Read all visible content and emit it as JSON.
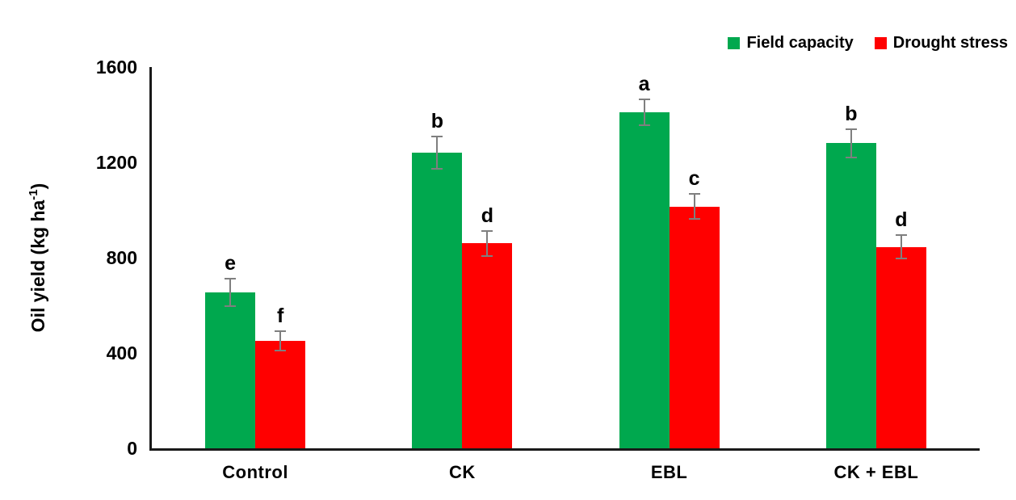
{
  "chart_data": {
    "type": "bar",
    "title": "",
    "xlabel": "",
    "ylabel": "Oil yield (kg ha⁻¹)",
    "ylabel_parts": {
      "main": "Oil yield (kg ha",
      "sup": "-1",
      "close": ")"
    },
    "categories": [
      "Control",
      "CK",
      "EBL",
      "CK + EBL"
    ],
    "series": [
      {
        "name": "Field capacity",
        "color": "#00A84E",
        "values": [
          655,
          1240,
          1410,
          1280
        ],
        "errors": [
          55,
          65,
          50,
          57
        ],
        "sig_letters": [
          "e",
          "b",
          "a",
          "b"
        ]
      },
      {
        "name": "Drought stress",
        "color": "#FF0000",
        "values": [
          450,
          860,
          1015,
          845
        ],
        "errors": [
          38,
          50,
          50,
          45
        ],
        "sig_letters": [
          "f",
          "d",
          "c",
          "d"
        ]
      }
    ],
    "ylim": [
      0,
      1600
    ],
    "yticks": [
      0,
      400,
      800,
      1200,
      1600
    ],
    "grid": false,
    "legend_position": "top-right",
    "error_bar_color": "#7F7F7F",
    "axis_color": "#1A1A1A",
    "text_color": "#000000"
  }
}
